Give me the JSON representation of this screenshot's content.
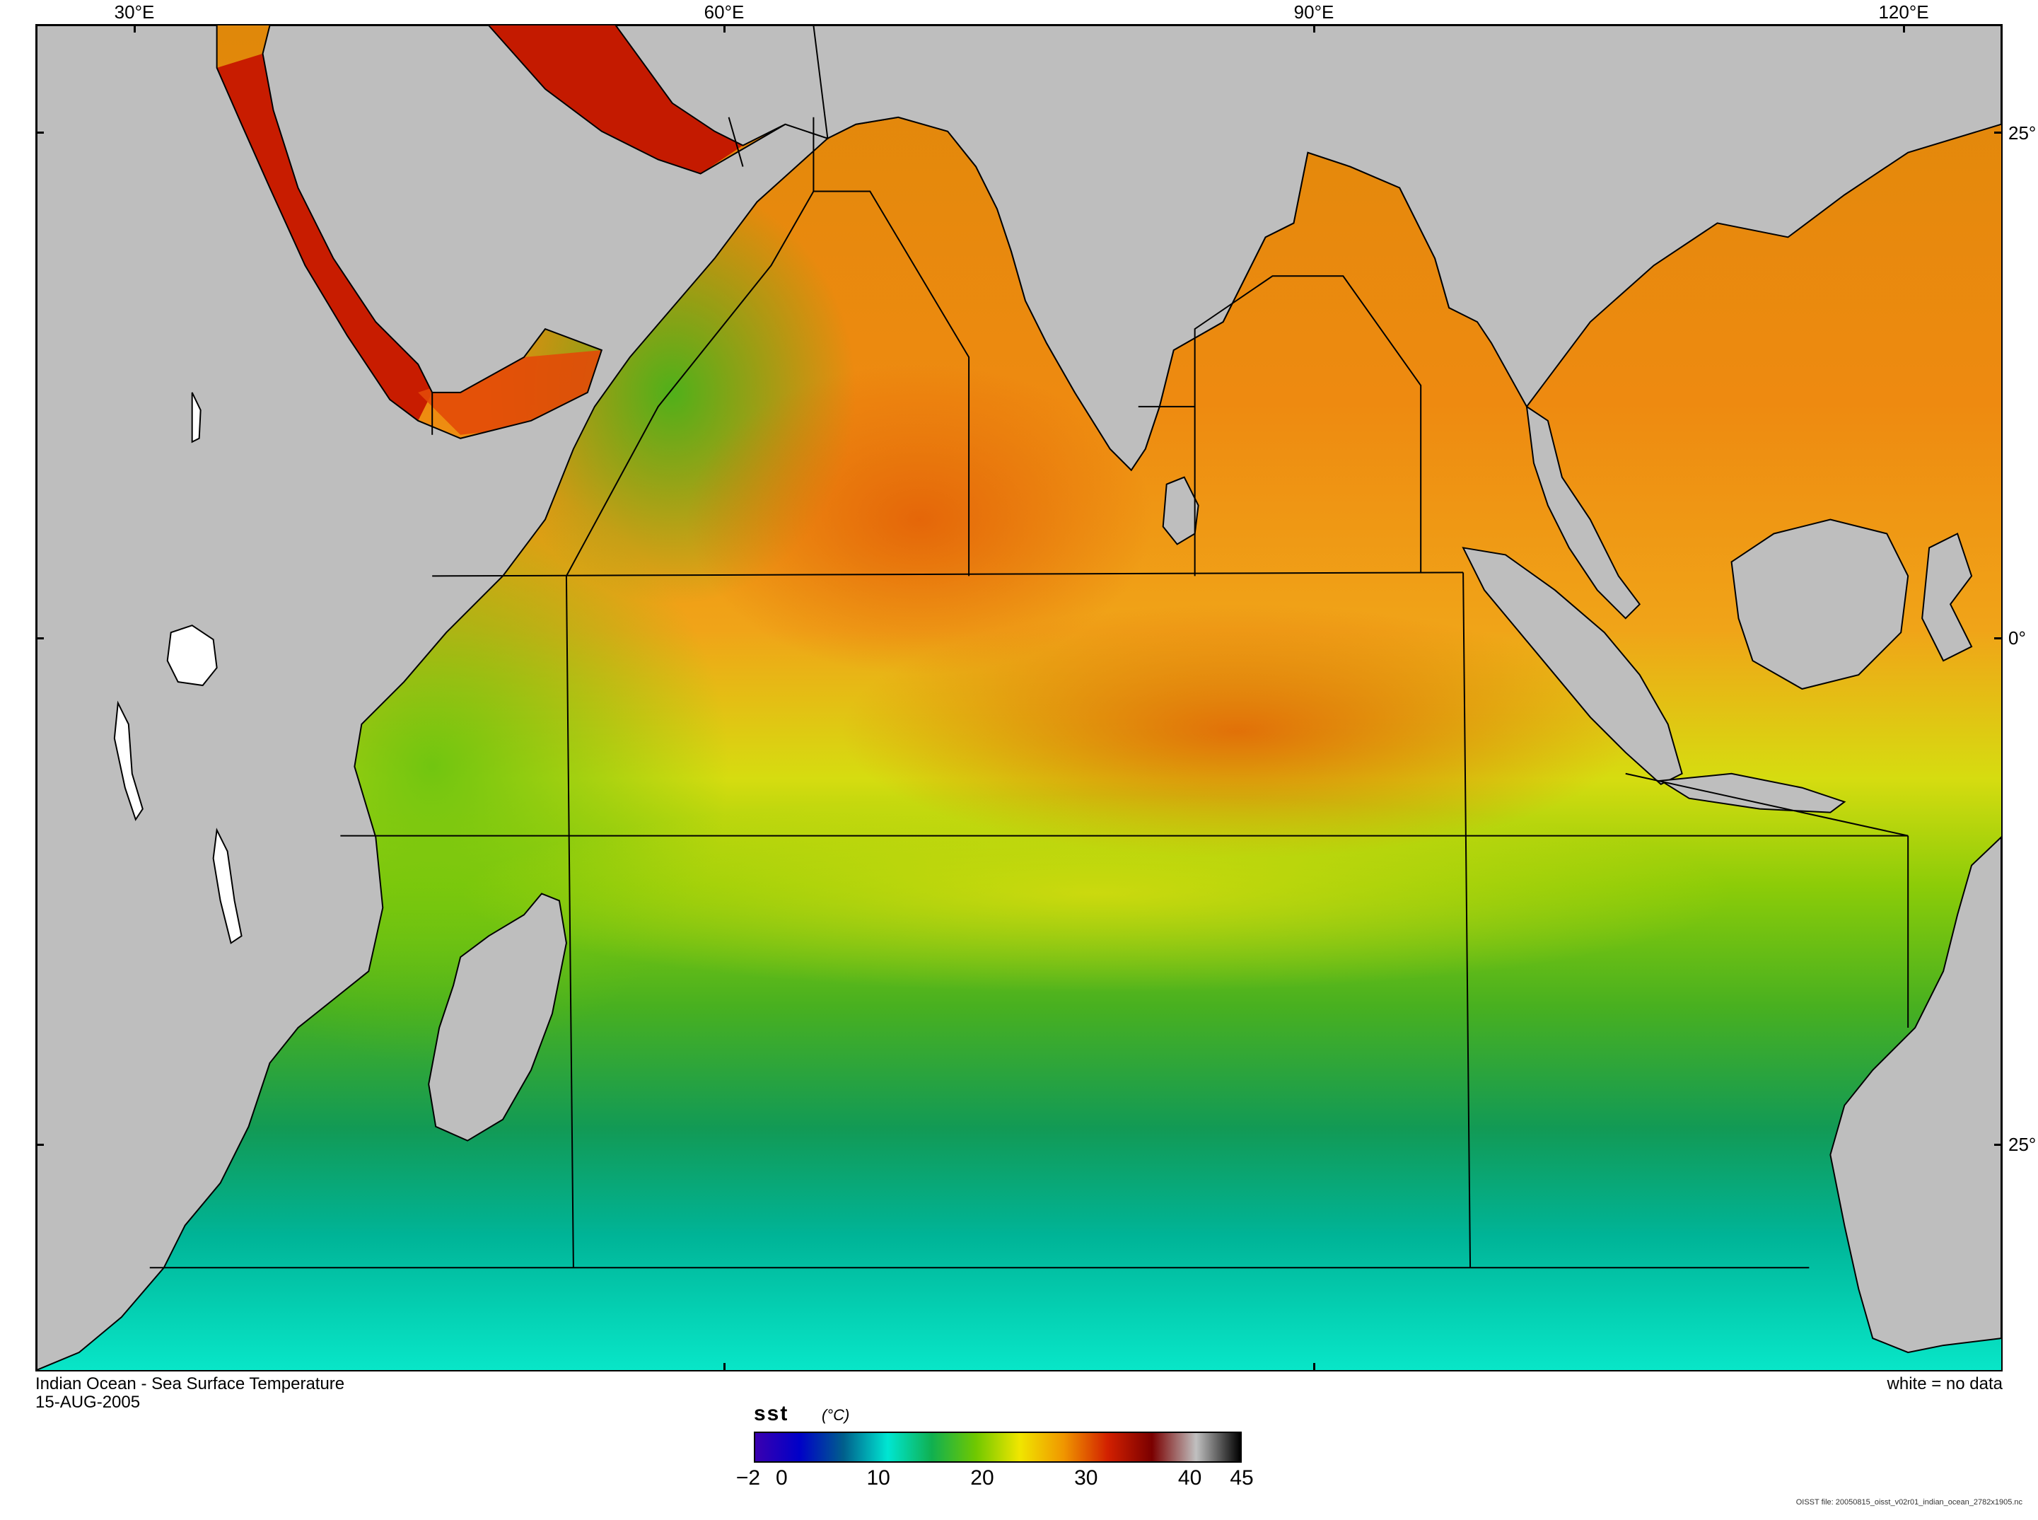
{
  "map": {
    "lon_labels": [
      "30°E",
      "60°E",
      "90°E",
      "120°E"
    ],
    "lat_labels": [
      "25°",
      "0°",
      "25°"
    ],
    "title": "Indian Ocean - Sea Surface Temperature",
    "date": "15-AUG-2005",
    "no_data_note": "white = no data",
    "file_note": "OISST file: 20050815_oisst_v02r01_indian_ocean_2782x1905.nc",
    "land_color": "#bebebe",
    "no_data_color": "#ffffff"
  },
  "colorbar": {
    "variable": "sst",
    "units": "(°C)",
    "tick_labels": [
      "−2",
      "0",
      "10",
      "20",
      "30",
      "40",
      "45"
    ],
    "range": [
      -2,
      45
    ],
    "colors": [
      "#3a00b0",
      "#0000c8",
      "#005f8c",
      "#00e6d2",
      "#10b050",
      "#70c800",
      "#f0e600",
      "#f09600",
      "#d22000",
      "#7a0000",
      "#c0c0c0",
      "#000000"
    ]
  }
}
